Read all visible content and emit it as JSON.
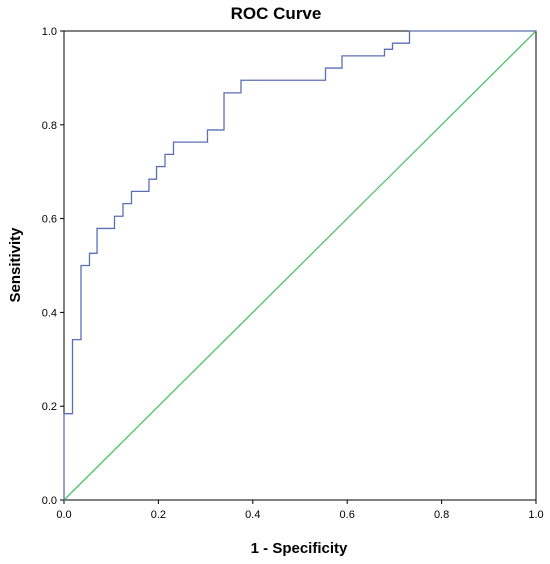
{
  "chart_data": {
    "type": "line",
    "title": "ROC Curve",
    "xlabel": "1 - Specificity",
    "ylabel": "Sensitivity",
    "xlim": [
      0,
      1
    ],
    "ylim": [
      0,
      1
    ],
    "x_ticks": [
      "0.0",
      "0.2",
      "0.4",
      "0.6",
      "0.8",
      "1.0"
    ],
    "y_ticks": [
      "0.0",
      "0.2",
      "0.4",
      "0.6",
      "0.8",
      "1.0"
    ],
    "grid": false,
    "legend": "none",
    "series": [
      {
        "color": "#5b6fb5",
        "step": true,
        "x": [
          0.0,
          0.0,
          0.018,
          0.018,
          0.036,
          0.036,
          0.054,
          0.054,
          0.07,
          0.07,
          0.107,
          0.107,
          0.125,
          0.125,
          0.143,
          0.143,
          0.18,
          0.18,
          0.196,
          0.196,
          0.214,
          0.214,
          0.232,
          0.232,
          0.304,
          0.304,
          0.339,
          0.339,
          0.375,
          0.375,
          0.554,
          0.554,
          0.589,
          0.589,
          0.679,
          0.679,
          0.696,
          0.696,
          0.732,
          0.732,
          1.0
        ],
        "y": [
          0.0,
          0.184,
          0.184,
          0.342,
          0.342,
          0.5,
          0.5,
          0.526,
          0.526,
          0.579,
          0.579,
          0.605,
          0.605,
          0.632,
          0.632,
          0.658,
          0.658,
          0.684,
          0.684,
          0.711,
          0.711,
          0.737,
          0.737,
          0.763,
          0.763,
          0.789,
          0.789,
          0.868,
          0.868,
          0.895,
          0.895,
          0.921,
          0.921,
          0.947,
          0.947,
          0.961,
          0.961,
          0.974,
          0.974,
          1.0,
          1.0
        ]
      },
      {
        "color": "#4fc26a",
        "x": [
          0,
          1
        ],
        "y": [
          0,
          1
        ]
      }
    ]
  }
}
